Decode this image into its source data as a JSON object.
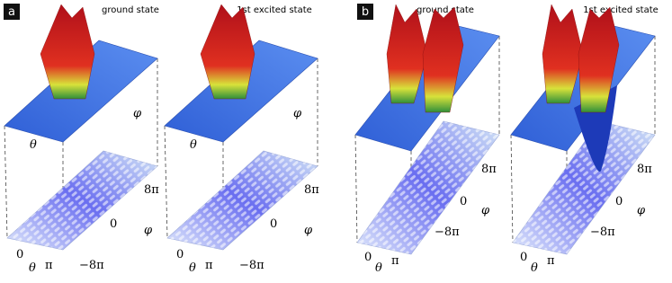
{
  "panels": [
    {
      "label": "a",
      "plots": [
        {
          "title": "ground state",
          "top_labels": {
            "theta": "θ",
            "phi": "φ"
          },
          "bottom_labels": {
            "theta": "θ",
            "theta_ticks": [
              "0",
              "π"
            ],
            "phi": "φ",
            "phi_ticks": [
              "8π",
              "0",
              "−8π"
            ]
          }
        },
        {
          "title": "1st excited state",
          "top_labels": {
            "theta": "θ",
            "phi": "φ"
          },
          "bottom_labels": {
            "theta": "θ",
            "theta_ticks": [
              "0",
              "π"
            ],
            "phi": "φ",
            "phi_ticks": [
              "8π",
              "0",
              "−8π"
            ]
          }
        }
      ]
    },
    {
      "label": "b",
      "plots": [
        {
          "title": "ground state",
          "bottom_labels": {
            "theta": "θ",
            "theta_ticks": [
              "0",
              "π"
            ],
            "phi": "φ",
            "phi_ticks": [
              "8π",
              "0",
              "−8π"
            ]
          }
        },
        {
          "title": "1st excited state",
          "bottom_labels": {
            "theta": "θ",
            "theta_ticks": [
              "0",
              "π"
            ],
            "phi": "φ",
            "phi_ticks": [
              "8π",
              "0",
              "−8π"
            ]
          }
        }
      ]
    }
  ]
}
